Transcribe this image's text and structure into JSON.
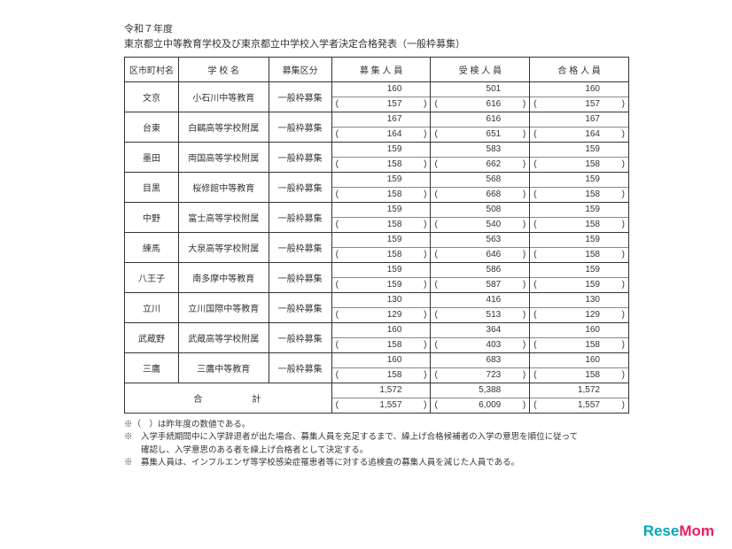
{
  "header": {
    "line1": "令和７年度",
    "line2": "東京都立中等教育学校及び東京都立中学校入学者決定合格発表（一般枠募集）"
  },
  "columns": {
    "ward": "区市町村名",
    "school": "学 校 名",
    "type": "募集区分",
    "bosyu": "募 集 人 員",
    "juken": "受 検 人 員",
    "gokaku": "合 格 人 員"
  },
  "type_label": "一般枠募集",
  "rows": [
    {
      "ward": "文京",
      "school": "小石川中等教育",
      "b": "160",
      "bp": "157",
      "j": "501",
      "jp": "616",
      "g": "160",
      "gp": "157"
    },
    {
      "ward": "台東",
      "school": "白鷗高等学校附属",
      "b": "167",
      "bp": "164",
      "j": "616",
      "jp": "651",
      "g": "167",
      "gp": "164"
    },
    {
      "ward": "墨田",
      "school": "両国高等学校附属",
      "b": "159",
      "bp": "158",
      "j": "583",
      "jp": "662",
      "g": "159",
      "gp": "158"
    },
    {
      "ward": "目黒",
      "school": "桜修館中等教育",
      "b": "159",
      "bp": "158",
      "j": "568",
      "jp": "668",
      "g": "159",
      "gp": "158"
    },
    {
      "ward": "中野",
      "school": "富士高等学校附属",
      "b": "159",
      "bp": "158",
      "j": "508",
      "jp": "540",
      "g": "159",
      "gp": "158"
    },
    {
      "ward": "練馬",
      "school": "大泉高等学校附属",
      "b": "159",
      "bp": "158",
      "j": "563",
      "jp": "646",
      "g": "159",
      "gp": "158"
    },
    {
      "ward": "八王子",
      "school": "南多摩中等教育",
      "b": "159",
      "bp": "159",
      "j": "586",
      "jp": "587",
      "g": "159",
      "gp": "159"
    },
    {
      "ward": "立川",
      "school": "立川国際中等教育",
      "b": "130",
      "bp": "129",
      "j": "416",
      "jp": "513",
      "g": "130",
      "gp": "129"
    },
    {
      "ward": "武蔵野",
      "school": "武蔵高等学校附属",
      "b": "160",
      "bp": "158",
      "j": "364",
      "jp": "403",
      "g": "160",
      "gp": "158"
    },
    {
      "ward": "三鷹",
      "school": "三鷹中等教育",
      "b": "160",
      "bp": "158",
      "j": "683",
      "jp": "723",
      "g": "160",
      "gp": "158"
    }
  ],
  "total": {
    "label": "合　　計",
    "b": "1,572",
    "bp": "1,557",
    "j": "5,388",
    "jp": "6,009",
    "g": "1,572",
    "gp": "1,557"
  },
  "notes": {
    "n1": "※（　）は昨年度の数値である。",
    "n2": "※　入学手続期間中に入学辞退者が出た場合、募集人員を充足するまで、繰上げ合格候補者の入学の意思を順位に従って",
    "n2b": "　　確認し、入学意思のある者を繰上げ合格者として決定する。",
    "n3": "※　募集人員は、インフルエンザ等学校感染症罹患者等に対する追検査の募集人員を減じた人員である。"
  },
  "logo": {
    "part1": "Rese",
    "part2": "Mom"
  }
}
